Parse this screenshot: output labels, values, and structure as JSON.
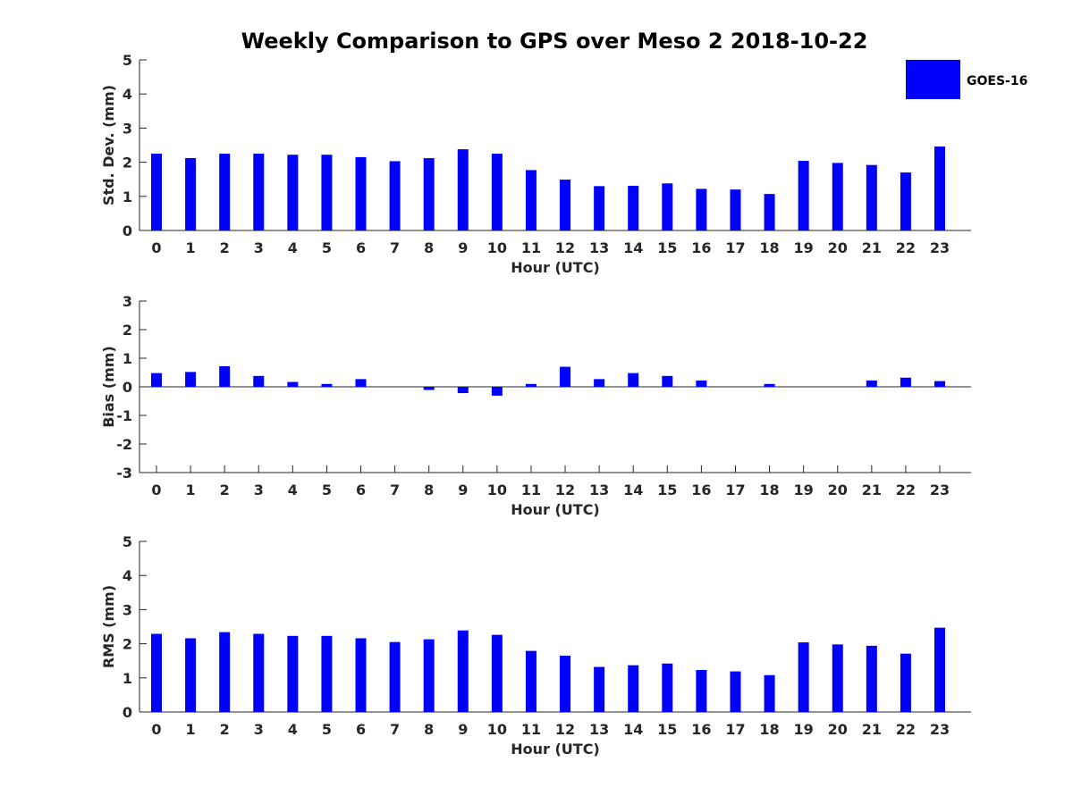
{
  "chart_data": {
    "type": "bar",
    "title": "Weekly Comparison to GPS over Meso 2 2018-10-22",
    "legend": {
      "label": "GOES-16",
      "placement": "top-right"
    },
    "bar_color": "#0000ff",
    "categories": [
      "0",
      "1",
      "2",
      "3",
      "4",
      "5",
      "6",
      "7",
      "8",
      "9",
      "10",
      "11",
      "12",
      "13",
      "14",
      "15",
      "16",
      "17",
      "18",
      "19",
      "20",
      "21",
      "22",
      "23"
    ],
    "panels": [
      {
        "key": "std",
        "ylabel": "Std. Dev. (mm)",
        "xlabel": "Hour (UTC)",
        "ylim": [
          0,
          5
        ],
        "yticks": [
          "0",
          "1",
          "2",
          "3",
          "4",
          "5"
        ],
        "series": [
          {
            "name": "GOES-16",
            "values": [
              2.25,
              2.12,
              2.25,
              2.25,
              2.22,
              2.22,
              2.15,
              2.03,
              2.12,
              2.38,
              2.25,
              1.77,
              1.49,
              1.3,
              1.31,
              1.38,
              1.22,
              1.2,
              1.07,
              2.04,
              1.98,
              1.92,
              1.7,
              2.46
            ]
          }
        ]
      },
      {
        "key": "bias",
        "ylabel": "Bias (mm)",
        "xlabel": "Hour (UTC)",
        "ylim": [
          -3,
          3
        ],
        "yticks": [
          "-3",
          "-2",
          "-1",
          "0",
          "1",
          "2",
          "3"
        ],
        "series": [
          {
            "name": "GOES-16",
            "values": [
              0.48,
              0.52,
              0.72,
              0.38,
              0.17,
              0.1,
              0.27,
              0.0,
              -0.11,
              -0.22,
              -0.31,
              0.1,
              0.7,
              0.27,
              0.48,
              0.38,
              0.22,
              0.0,
              0.1,
              0.0,
              0.0,
              0.22,
              0.32,
              0.2
            ]
          }
        ]
      },
      {
        "key": "rms",
        "ylabel": "RMS (mm)",
        "xlabel": "Hour (UTC)",
        "ylim": [
          0,
          5
        ],
        "yticks": [
          "0",
          "1",
          "2",
          "3",
          "4",
          "5"
        ],
        "series": [
          {
            "name": "GOES-16",
            "values": [
              2.29,
              2.16,
              2.34,
              2.29,
              2.23,
              2.23,
              2.16,
              2.05,
              2.13,
              2.39,
              2.26,
              1.79,
              1.65,
              1.32,
              1.37,
              1.42,
              1.23,
              1.19,
              1.08,
              2.04,
              1.98,
              1.94,
              1.71,
              2.47
            ]
          }
        ]
      }
    ]
  }
}
